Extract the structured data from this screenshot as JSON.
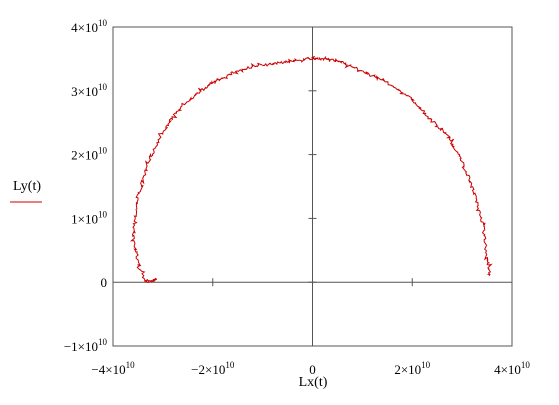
{
  "chart_data": {
    "type": "line",
    "xlabel": "Lx(t)",
    "ylabel": "Ly(t)",
    "xlim": [
      -40000000000.0,
      40000000000.0
    ],
    "ylim": [
      -10000000000.0,
      40000000000.0
    ],
    "x_ticks": [
      -40000000000.0,
      -20000000000.0,
      0,
      20000000000.0,
      40000000000.0
    ],
    "y_ticks": [
      -10000000000.0,
      0,
      10000000000.0,
      20000000000.0,
      30000000000.0,
      40000000000.0
    ],
    "x_tick_labels": [
      {
        "mant": "−4×10",
        "exp": "10"
      },
      {
        "mant": "−2×10",
        "exp": "10"
      },
      {
        "mant": "0",
        "exp": ""
      },
      {
        "mant": "2×10",
        "exp": "10"
      },
      {
        "mant": "4×10",
        "exp": "10"
      }
    ],
    "y_tick_labels": [
      {
        "mant": "−1×10",
        "exp": "10"
      },
      {
        "mant": "0",
        "exp": ""
      },
      {
        "mant": "1×10",
        "exp": "10"
      },
      {
        "mant": "2×10",
        "exp": "10"
      },
      {
        "mant": "3×10",
        "exp": "10"
      },
      {
        "mant": "4×10",
        "exp": "10"
      }
    ],
    "grid": false,
    "legend": "left",
    "line_color": "#cc0000",
    "series": [
      {
        "name": "Ly(t)",
        "x": [
          -31200000000.0,
          -33500000000.0,
          -35000000000.0,
          -36000000000.0,
          -35000000000.0,
          -33000000000.0,
          -30500000000.0,
          -27000000000.0,
          -22500000000.0,
          -19500000000.0,
          -15500000000.0,
          -10500000000.0,
          -5500000000.0,
          -1000000000.0,
          2500000000.0,
          6000000000.0,
          10000000000.0,
          14500000000.0,
          19500000000.0,
          23000000000.0,
          27000000000.0,
          30000000000.0,
          32500000000.0,
          34200000000.0,
          35000000000.0,
          35500000000.0
        ],
        "y": [
          500000000.0,
          0.0,
          3000000000.0,
          8000000000.0,
          13500000000.0,
          18500000000.0,
          23000000000.0,
          27000000000.0,
          30000000000.0,
          31500000000.0,
          33000000000.0,
          34000000000.0,
          34500000000.0,
          35000000000.0,
          35000000000.0,
          34500000000.0,
          33000000000.0,
          31500000000.0,
          29000000000.0,
          26000000000.0,
          23000000000.0,
          19000000000.0,
          14000000000.0,
          9000000000.0,
          4000000000.0,
          1000000000.0
        ]
      }
    ]
  }
}
